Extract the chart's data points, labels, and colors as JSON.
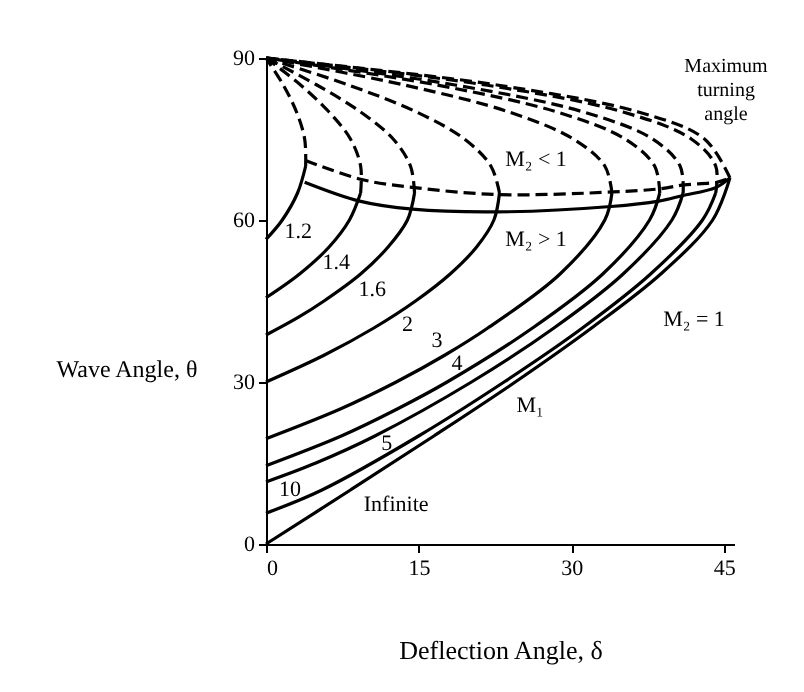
{
  "chart_data": {
    "type": "line",
    "xlabel": "Deflection Angle, δ",
    "ylabel": "Wave Angle, θ",
    "xlim": [
      0,
      46
    ],
    "xticks": [
      0,
      15,
      30,
      45
    ],
    "ylim": [
      0,
      90
    ],
    "yticks": [
      0,
      30,
      60,
      90
    ],
    "grid": false,
    "series": [
      {
        "name": "1.2",
        "color": "#000000",
        "line_style": "solid",
        "x": [
          0,
          1.6,
          3.1,
          3.9
        ],
        "values": [
          56.4,
          60,
          65,
          70
        ]
      },
      {
        "color": "#000000",
        "line_style": "dashed",
        "x": [
          3.9,
          3.8,
          3.0,
          1.7,
          0
        ],
        "values": [
          70,
          75,
          80,
          85,
          90
        ]
      },
      {
        "name": "1.4",
        "color": "#000000",
        "line_style": "solid",
        "x": [
          0,
          3.3,
          6.2,
          8.2,
          9.3
        ],
        "values": [
          45.6,
          50,
          55,
          60,
          65
        ]
      },
      {
        "color": "#000000",
        "line_style": "dashed",
        "x": [
          9.3,
          9.3,
          8.3,
          6.2,
          3.4,
          0
        ],
        "values": [
          65,
          70,
          75,
          80,
          85,
          90
        ]
      },
      {
        "name": "1.6",
        "color": "#000000",
        "line_style": "solid",
        "x": [
          0,
          3.2,
          5.7,
          9.3,
          12.0,
          13.9,
          14.6
        ],
        "values": [
          38.7,
          42,
          45,
          50,
          55,
          60,
          65
        ]
      },
      {
        "color": "#000000",
        "line_style": "dashed",
        "x": [
          14.6,
          14.2,
          12.5,
          9.3,
          5.0,
          0
        ],
        "values": [
          65,
          70,
          75,
          80,
          85,
          90
        ]
      },
      {
        "name": "2",
        "color": "#000000",
        "line_style": "solid",
        "x": [
          0,
          5.75,
          10.6,
          14.7,
          18.1,
          20.7,
          22.4,
          22.95
        ],
        "values": [
          30,
          35,
          40,
          45,
          50,
          55,
          60,
          65
        ]
      },
      {
        "color": "#000000",
        "line_style": "dashed",
        "x": [
          22.95,
          22.1,
          19.5,
          14.8,
          8.1,
          0
        ],
        "values": [
          65,
          70,
          75,
          80,
          85,
          90
        ]
      },
      {
        "name": "3",
        "color": "#000000",
        "line_style": "solid",
        "x": [
          0,
          7.3,
          12.8,
          17.6,
          21.8,
          28.9,
          33.3,
          34.0
        ],
        "values": [
          19.5,
          25,
          30,
          35,
          40,
          50,
          60,
          65
        ]
      },
      {
        "color": "#000000",
        "line_style": "dashed",
        "x": [
          34.0,
          33.3,
          30.2,
          23.9,
          13.6,
          0
        ],
        "values": [
          65,
          70,
          75,
          80,
          85,
          90
        ]
      },
      {
        "name": "4",
        "color": "#000000",
        "line_style": "solid",
        "x": [
          0,
          7.4,
          12.9,
          17.8,
          26.2,
          33.1,
          37.7,
          38.7
        ],
        "values": [
          14.5,
          20,
          25,
          30,
          40,
          50,
          60,
          65
        ]
      },
      {
        "color": "#000000",
        "line_style": "dashed",
        "x": [
          38.7,
          38.2,
          35.3,
          28.6,
          16.8,
          0
        ],
        "values": [
          65,
          70,
          75,
          80,
          85,
          90
        ]
      },
      {
        "name": "5",
        "color": "#000000",
        "line_style": "solid",
        "x": [
          0,
          4.9,
          10.7,
          20.2,
          28.3,
          35.1,
          39.9,
          41.0
        ],
        "values": [
          11.5,
          15,
          20,
          30,
          40,
          50,
          60,
          65
        ]
      },
      {
        "color": "#000000",
        "line_style": "dashed",
        "x": [
          41.0,
          40.7,
          38.0,
          31.2,
          18.6,
          0
        ],
        "values": [
          65,
          70,
          75,
          80,
          85,
          90
        ]
      },
      {
        "name": "10",
        "color": "#000000",
        "line_style": "solid",
        "x": [
          0,
          5.5,
          15.0,
          23.4,
          31.1,
          37.8,
          42.9,
          44.2
        ],
        "values": [
          5.7,
          10,
          20,
          30,
          40,
          50,
          60,
          65
        ]
      },
      {
        "color": "#000000",
        "line_style": "dashed",
        "x": [
          44.2,
          44.2,
          41.8,
          35.1,
          21.6,
          0
        ],
        "values": [
          65,
          70,
          75,
          80,
          85,
          90
        ]
      },
      {
        "name": "Infinite",
        "color": "#000000",
        "line_style": "solid",
        "x": [
          0,
          8.3,
          16.5,
          24.5,
          32.0,
          38.8,
          43.9,
          45.6
        ],
        "values": [
          0,
          10,
          20,
          30,
          40,
          50,
          60,
          67.8
        ]
      },
      {
        "color": "#000000",
        "line_style": "dashed",
        "x": [
          45.6,
          43.1,
          36.6,
          22.7,
          9.8,
          0
        ],
        "values": [
          67.8,
          75,
          80,
          85,
          88,
          90
        ]
      },
      {
        "color": "#000000",
        "line_style": "dashed",
        "x": [
          3.9,
          9.4,
          14.6,
          23.0,
          34.1,
          38.8,
          41.1,
          44.3,
          45.6
        ],
        "values": [
          71,
          67.5,
          66,
          64.7,
          65.2,
          65.8,
          66.5,
          67,
          67.8
        ]
      },
      {
        "color": "#000000",
        "line_style": "solid",
        "x": [
          3.8,
          9.2,
          14.4,
          22.7,
          33.9,
          38.6,
          40.9,
          44.2,
          45.6
        ],
        "values": [
          67,
          63.5,
          62,
          61.5,
          62.5,
          63.5,
          64.5,
          66,
          67.8
        ]
      }
    ],
    "annotations": [
      "M₁",
      "M₂ < 1",
      "M₂ > 1",
      "M₂ = 1",
      "Maximum turning angle"
    ]
  }
}
